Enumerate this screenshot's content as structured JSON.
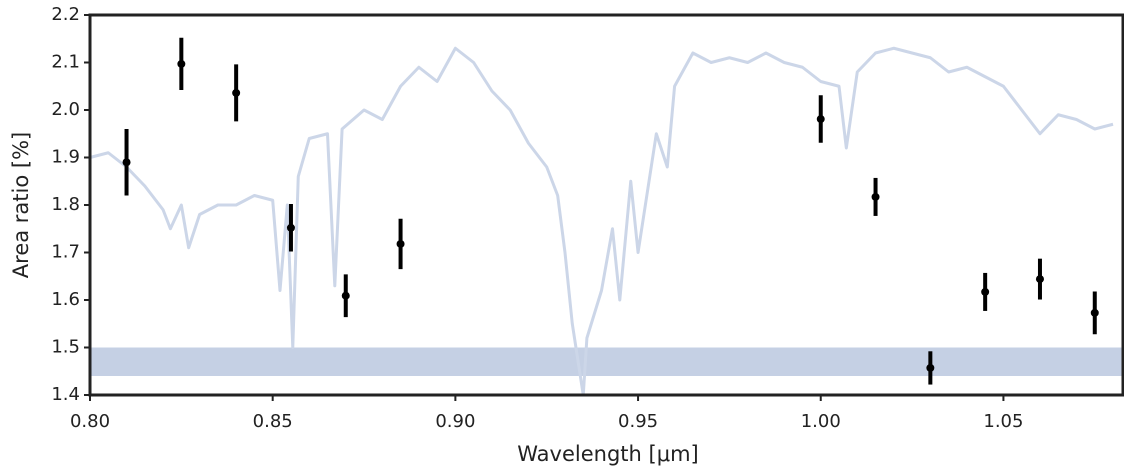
{
  "chart_data": {
    "type": "scatter",
    "xlabel": "Wavelength [μm]",
    "ylabel": "Area ratio [%]",
    "xlim": [
      0.8,
      1.083
    ],
    "ylim": [
      1.4,
      2.2
    ],
    "xticks": [
      {
        "value": 0.8,
        "label": "0.80"
      },
      0.85,
      {
        "value": 0.9,
        "label": "0.90"
      },
      0.95,
      {
        "value": 1.0,
        "label": "1.00"
      },
      1.05
    ],
    "yticks": [
      1.4,
      1.5,
      1.6,
      1.7,
      1.8,
      1.9,
      {
        "value": 2.0,
        "label": "2.0"
      },
      2.1,
      2.2
    ],
    "band": {
      "color": "#c5d0e4",
      "range": [
        1.44,
        1.5
      ]
    },
    "spectrum": {
      "color": "#ccd6e8",
      "x": [
        0.8,
        0.805,
        0.81,
        0.815,
        0.82,
        0.822,
        0.825,
        0.827,
        0.83,
        0.835,
        0.84,
        0.845,
        0.85,
        0.852,
        0.854,
        0.8555,
        0.857,
        0.86,
        0.865,
        0.867,
        0.869,
        0.875,
        0.88,
        0.885,
        0.89,
        0.895,
        0.9,
        0.905,
        0.91,
        0.915,
        0.92,
        0.925,
        0.928,
        0.93,
        0.932,
        0.934,
        0.935,
        0.936,
        0.94,
        0.943,
        0.945,
        0.948,
        0.95,
        0.955,
        0.958,
        0.96,
        0.965,
        0.97,
        0.975,
        0.98,
        0.985,
        0.99,
        0.995,
        1.0,
        1.005,
        1.007,
        1.01,
        1.015,
        1.02,
        1.025,
        1.03,
        1.035,
        1.04,
        1.045,
        1.05,
        1.055,
        1.06,
        1.065,
        1.07,
        1.075,
        1.08
      ],
      "values": [
        1.9,
        1.91,
        1.88,
        1.84,
        1.79,
        1.75,
        1.8,
        1.71,
        1.78,
        1.8,
        1.8,
        1.82,
        1.81,
        1.62,
        1.8,
        1.5,
        1.86,
        1.94,
        1.95,
        1.63,
        1.96,
        2.0,
        1.98,
        2.05,
        2.09,
        2.06,
        2.13,
        2.1,
        2.04,
        2.0,
        1.93,
        1.88,
        1.82,
        1.7,
        1.55,
        1.45,
        1.4,
        1.52,
        1.62,
        1.75,
        1.6,
        1.85,
        1.7,
        1.95,
        1.88,
        2.05,
        2.12,
        2.1,
        2.11,
        2.1,
        2.12,
        2.1,
        2.09,
        2.06,
        2.05,
        1.92,
        2.08,
        2.12,
        2.13,
        2.12,
        2.11,
        2.08,
        2.09,
        2.07,
        2.05,
        2.0,
        1.95,
        1.99,
        1.98,
        1.96,
        1.97
      ]
    },
    "points": {
      "color": "#000000",
      "x": [
        0.81,
        0.825,
        0.84,
        0.855,
        0.87,
        0.885,
        1.0,
        1.015,
        1.03,
        1.045,
        1.06,
        1.075
      ],
      "values": [
        1.89,
        2.097,
        2.036,
        1.752,
        1.609,
        1.718,
        1.981,
        1.817,
        1.457,
        1.617,
        1.644,
        1.573
      ],
      "errors": [
        0.07,
        0.055,
        0.06,
        0.05,
        0.045,
        0.053,
        0.05,
        0.04,
        0.035,
        0.04,
        0.043,
        0.045
      ]
    }
  }
}
